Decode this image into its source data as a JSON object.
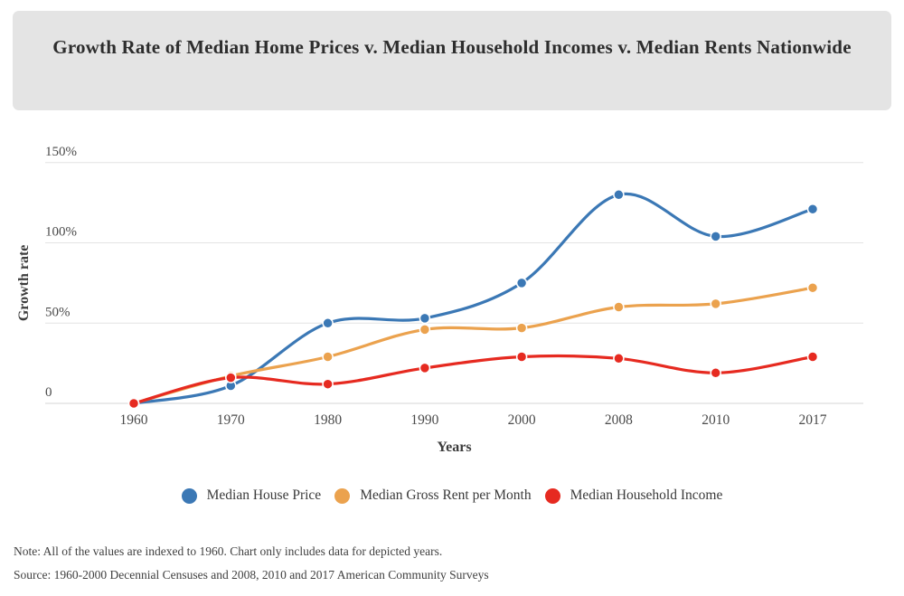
{
  "page": {
    "title": "Growth Rate of Median Home Prices v. Median Household Incomes v. Median Rents Nationwide",
    "note": "Note: All of the values are indexed to 1960. Chart only includes data for depicted years.",
    "source": "Source: 1960-2000 Decennial Censuses and 2008, 2010 and 2017 American Community Surveys"
  },
  "colors": {
    "title_card_bg": "#e4e4e4",
    "gridline": "#e3e3e3",
    "axis_line": "#d4d4d4",
    "tick_text": "#4a4a4a",
    "axis_title_text": "#3c3c3c",
    "series_blue": "#3b78b5",
    "series_orange": "#eba24e",
    "series_red": "#e62a20"
  },
  "chart_data": {
    "type": "line",
    "title": "Growth Rate of Median Home Prices v. Median Household Incomes v. Median Rents Nationwide",
    "xlabel": "Years",
    "ylabel": "Growth rate",
    "unit": "percent",
    "grid": true,
    "smooth": true,
    "legend_position": "bottom",
    "categories": [
      "1960",
      "1970",
      "1980",
      "1990",
      "2000",
      "2008",
      "2010",
      "2017"
    ],
    "yticks": [
      {
        "value": 0,
        "label": "0"
      },
      {
        "value": 50,
        "label": "50%"
      },
      {
        "value": 100,
        "label": "100%"
      },
      {
        "value": 150,
        "label": "150%"
      }
    ],
    "ylim": [
      0,
      155
    ],
    "series": [
      {
        "name": "Median House Price",
        "color": "#3b78b5",
        "values": [
          0,
          11,
          50,
          53,
          75,
          130,
          104,
          121
        ]
      },
      {
        "name": "Median Gross Rent per Month",
        "color": "#eba24e",
        "values": [
          0,
          17,
          29,
          46,
          47,
          60,
          62,
          72
        ]
      },
      {
        "name": "Median Household Income",
        "color": "#e62a20",
        "values": [
          0,
          16,
          12,
          22,
          29,
          28,
          19,
          29
        ]
      }
    ]
  }
}
